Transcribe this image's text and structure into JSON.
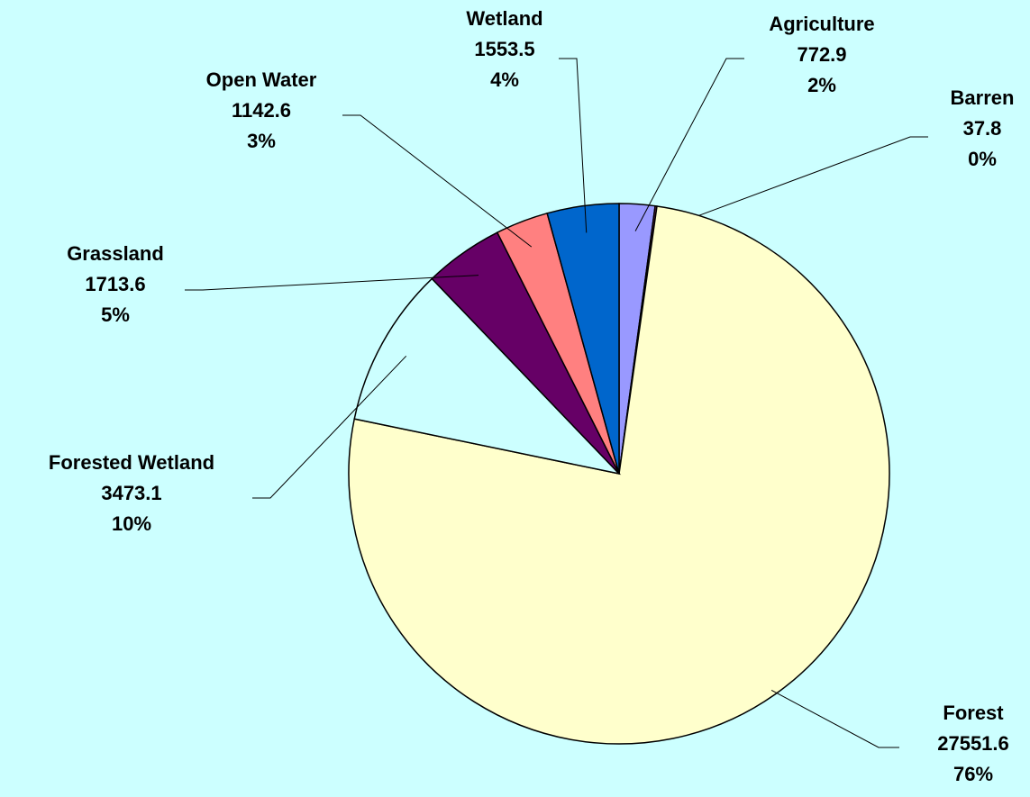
{
  "chart_data": {
    "type": "pie",
    "categories": [
      "Agriculture",
      "Barren",
      "Forest",
      "Forested Wetland",
      "Grassland",
      "Open Water",
      "Wetland"
    ],
    "values": [
      772.9,
      37.8,
      27551.6,
      3473.1,
      1713.6,
      1142.6,
      1553.5
    ],
    "percent_labels": [
      "2%",
      "0%",
      "76%",
      "10%",
      "5%",
      "3%",
      "4%"
    ],
    "colors": [
      "#9999ff",
      "#993366",
      "#ffffcc",
      "#ccffff",
      "#660066",
      "#ff8080",
      "#0066cc"
    ]
  }
}
